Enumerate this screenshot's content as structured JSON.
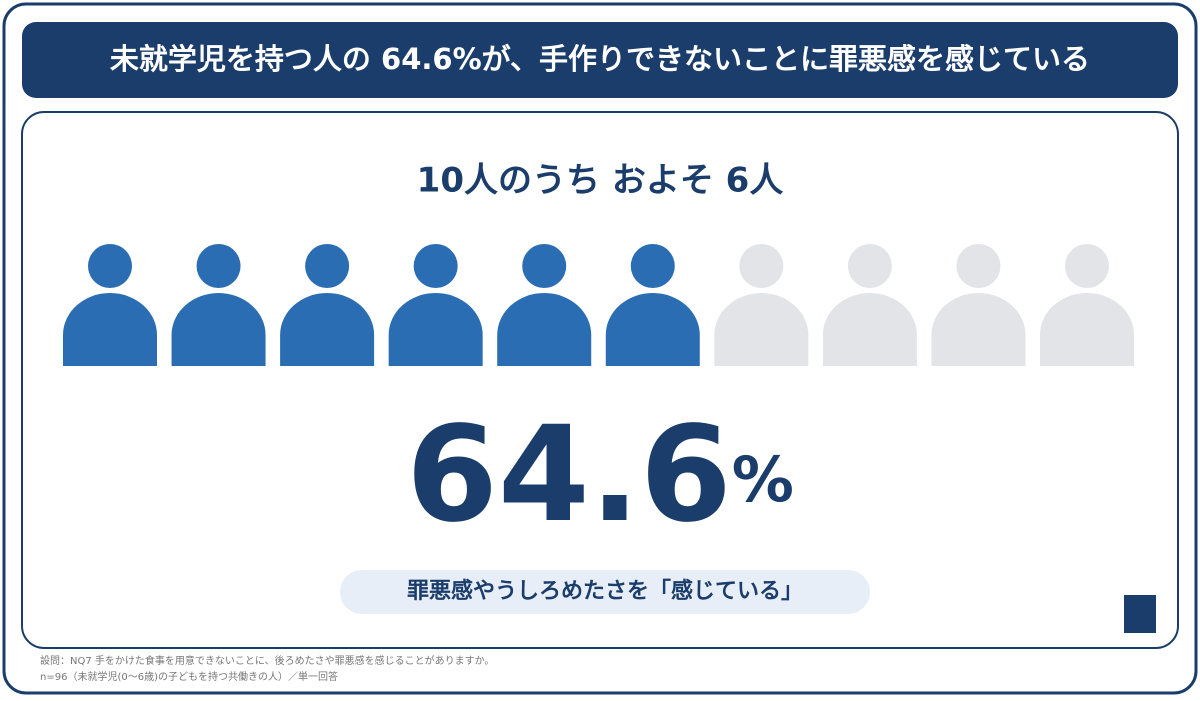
{
  "header": {
    "title": "未就学児を持つ人の 64.6%が、手作りできないことに罪悪感を感じている"
  },
  "subtitle": "10人のうち およそ 6人",
  "pictogram": {
    "total": 10,
    "filled": 6,
    "filled_color": "#2a6db3",
    "empty_color": "#e2e4e8"
  },
  "headline": {
    "value": "64.6",
    "unit": "%"
  },
  "caption": "罪悪感やうしろめたさを「感じている」",
  "footnotes": [
    "設問：NQ7 手をかけた食事を用意できないことに、後ろめたさや罪悪感を感じることがありますか。",
    "n=96（未就学児(0〜6歳)の子どもを持つ共働きの人）／単一回答"
  ]
}
